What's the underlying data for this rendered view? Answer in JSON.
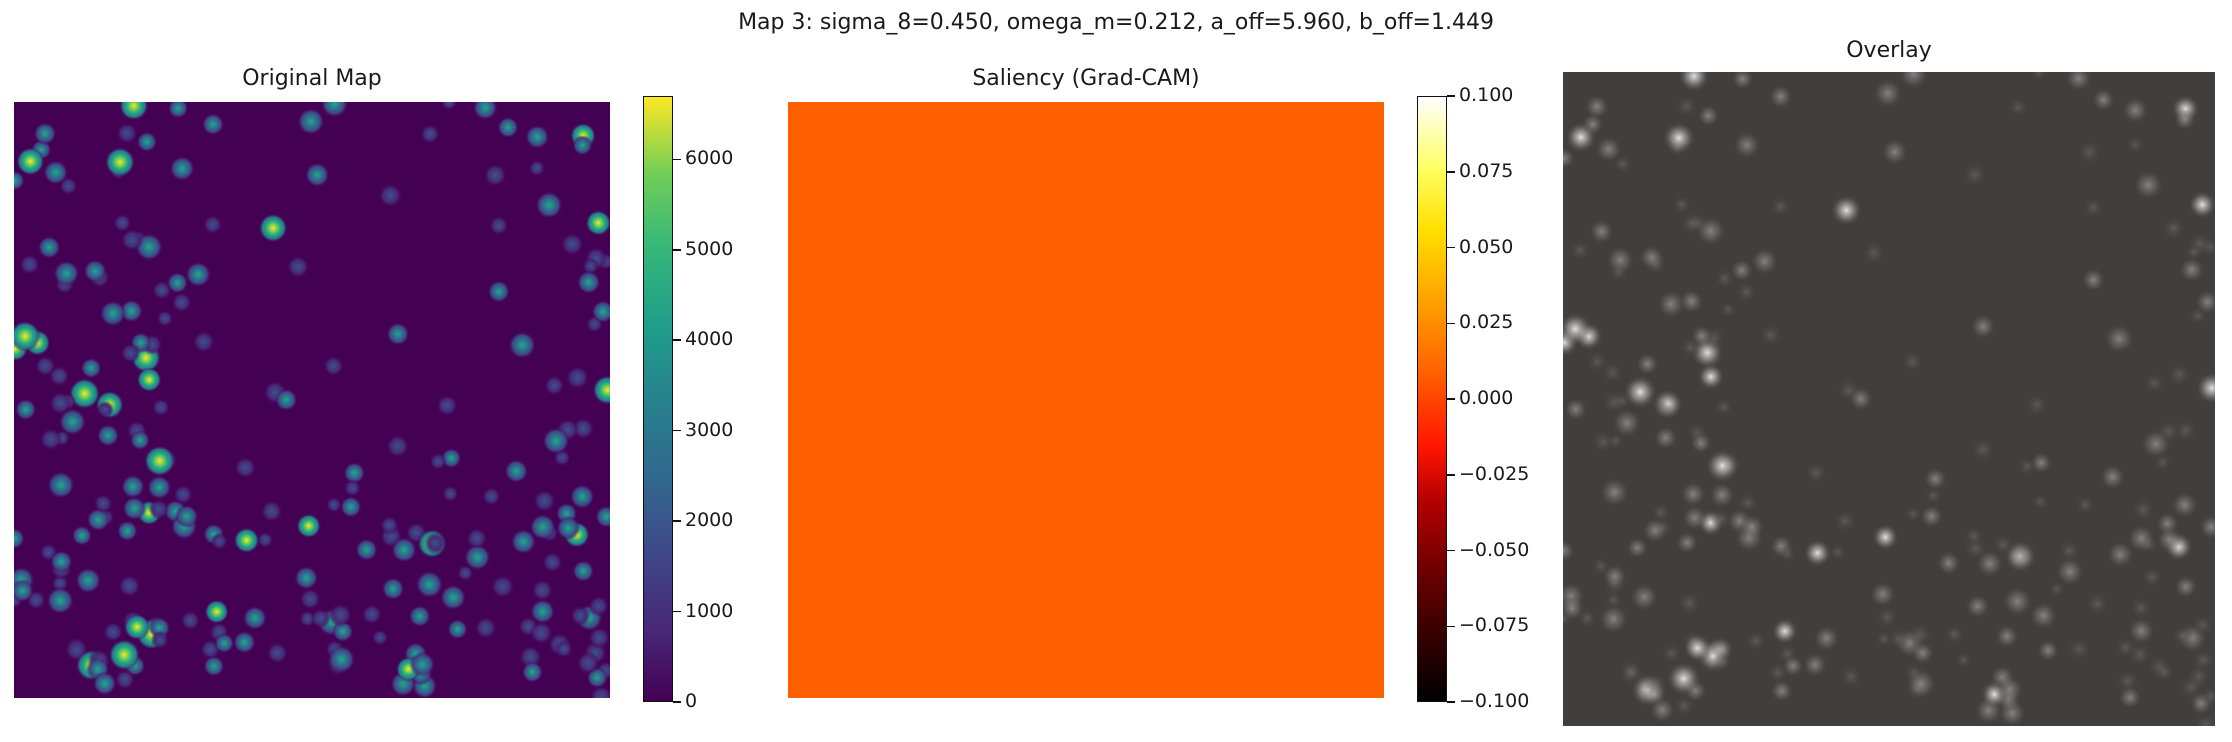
{
  "suptitle": "Map 3: sigma_8=0.450, omega_m=0.212, a_off=5.960, b_off=1.449",
  "chart_data": [
    {
      "type": "heatmap",
      "title": "Original Map",
      "colormap": "viridis",
      "colorbar": {
        "vmin": 0,
        "vmax": 6700,
        "ticks": [
          "0",
          "1000",
          "2000",
          "3000",
          "4000",
          "5000",
          "6000"
        ],
        "tick_values": [
          0,
          1000,
          2000,
          3000,
          4000,
          5000,
          6000
        ]
      }
    },
    {
      "type": "heatmap",
      "title": "Saliency (Grad-CAM)",
      "colormap": "hot",
      "fill_color": "#ff5f00",
      "uniform_value": 0.0,
      "colorbar": {
        "vmin": -0.1,
        "vmax": 0.1,
        "ticks": [
          "−0.100",
          "−0.075",
          "−0.050",
          "−0.025",
          "0.000",
          "0.025",
          "0.050",
          "0.075",
          "0.100"
        ],
        "tick_values": [
          -0.1,
          -0.075,
          -0.05,
          -0.025,
          0.0,
          0.025,
          0.05,
          0.075,
          0.1
        ]
      }
    },
    {
      "type": "heatmap",
      "title": "Overlay",
      "colormap": "gray",
      "background_color": "#423e3c"
    }
  ],
  "colors": {
    "viridis_low": "#440154",
    "viridis_mid": "#21918c",
    "viridis_high": "#fde725",
    "hot_fill": "#ff5f00",
    "overlay_bg": "#423e3c"
  }
}
